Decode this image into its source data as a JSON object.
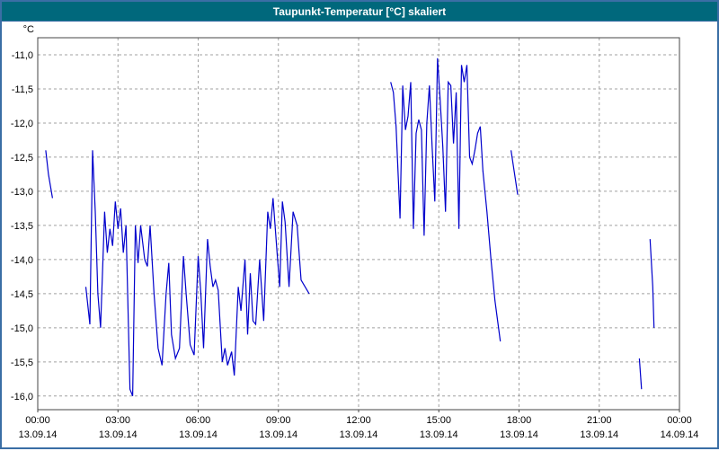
{
  "window": {
    "title": "Taupunkt-Temperatur [°C] skaliert"
  },
  "chart_data": {
    "type": "line",
    "title": "Taupunkt-Temperatur [°C] skaliert",
    "ylabel": "°C",
    "xlabel": "",
    "xlim": [
      0,
      24
    ],
    "ylim": [
      -16.2,
      -10.75
    ],
    "grid": true,
    "line_color": "#0000cc",
    "grid_color": "#a0a0a0",
    "border_color": "#444444",
    "y_ticks": [
      {
        "v": -11.0,
        "label": "-11,0"
      },
      {
        "v": -11.5,
        "label": "-11,5"
      },
      {
        "v": -12.0,
        "label": "-12,0"
      },
      {
        "v": -12.5,
        "label": "-12,5"
      },
      {
        "v": -13.0,
        "label": "-13,0"
      },
      {
        "v": -13.5,
        "label": "-13,5"
      },
      {
        "v": -14.0,
        "label": "-14,0"
      },
      {
        "v": -14.5,
        "label": "-14,5"
      },
      {
        "v": -15.0,
        "label": "-15,0"
      },
      {
        "v": -15.5,
        "label": "-15,5"
      },
      {
        "v": -16.0,
        "label": "-16,0"
      }
    ],
    "x_ticks": [
      {
        "t": 0,
        "time": "00:00",
        "date": "13.09.14"
      },
      {
        "t": 3,
        "time": "03:00",
        "date": "13.09.14"
      },
      {
        "t": 6,
        "time": "06:00",
        "date": "13.09.14"
      },
      {
        "t": 9,
        "time": "09:00",
        "date": "13.09.14"
      },
      {
        "t": 12,
        "time": "12:00",
        "date": "13.09.14"
      },
      {
        "t": 15,
        "time": "15:00",
        "date": "13.09.14"
      },
      {
        "t": 18,
        "time": "18:00",
        "date": "13.09.14"
      },
      {
        "t": 21,
        "time": "21:00",
        "date": "13.09.14"
      },
      {
        "t": 24,
        "time": "00:00",
        "date": "14.09.14"
      }
    ],
    "segments": [
      [
        [
          0.3,
          -12.4
        ],
        [
          0.4,
          -12.75
        ],
        [
          0.55,
          -13.1
        ]
      ],
      [
        [
          1.8,
          -14.4
        ],
        [
          1.95,
          -14.95
        ],
        [
          2.05,
          -12.4
        ],
        [
          2.15,
          -13.3
        ],
        [
          2.25,
          -14.5
        ],
        [
          2.35,
          -15.0
        ],
        [
          2.5,
          -13.3
        ],
        [
          2.6,
          -13.9
        ],
        [
          2.7,
          -13.55
        ],
        [
          2.8,
          -13.8
        ],
        [
          2.9,
          -13.15
        ],
        [
          3.0,
          -13.55
        ],
        [
          3.1,
          -13.25
        ],
        [
          3.2,
          -13.9
        ],
        [
          3.3,
          -13.5
        ],
        [
          3.45,
          -15.9
        ],
        [
          3.55,
          -16.0
        ],
        [
          3.65,
          -13.5
        ],
        [
          3.75,
          -14.05
        ],
        [
          3.85,
          -13.5
        ],
        [
          4.0,
          -14.0
        ],
        [
          4.1,
          -14.1
        ],
        [
          4.2,
          -13.5
        ],
        [
          4.35,
          -14.5
        ],
        [
          4.5,
          -15.3
        ],
        [
          4.65,
          -15.55
        ],
        [
          4.8,
          -14.5
        ],
        [
          4.9,
          -14.05
        ],
        [
          5.0,
          -15.1
        ],
        [
          5.15,
          -15.45
        ],
        [
          5.3,
          -15.3
        ],
        [
          5.45,
          -13.95
        ],
        [
          5.55,
          -14.5
        ],
        [
          5.7,
          -15.25
        ],
        [
          5.85,
          -15.4
        ],
        [
          6.0,
          -13.95
        ],
        [
          6.1,
          -14.5
        ],
        [
          6.2,
          -15.3
        ],
        [
          6.35,
          -13.7
        ],
        [
          6.45,
          -14.1
        ],
        [
          6.55,
          -14.4
        ],
        [
          6.65,
          -14.3
        ],
        [
          6.75,
          -14.45
        ],
        [
          6.9,
          -15.5
        ],
        [
          7.0,
          -15.3
        ],
        [
          7.1,
          -15.55
        ],
        [
          7.25,
          -15.35
        ],
        [
          7.35,
          -15.7
        ],
        [
          7.5,
          -14.4
        ],
        [
          7.6,
          -14.75
        ],
        [
          7.75,
          -14.0
        ],
        [
          7.85,
          -15.1
        ],
        [
          7.95,
          -14.2
        ],
        [
          8.05,
          -14.9
        ],
        [
          8.15,
          -14.95
        ],
        [
          8.3,
          -14.0
        ],
        [
          8.45,
          -14.9
        ],
        [
          8.6,
          -13.3
        ],
        [
          8.7,
          -13.55
        ],
        [
          8.8,
          -13.1
        ],
        [
          8.95,
          -13.9
        ],
        [
          9.05,
          -14.4
        ],
        [
          9.15,
          -13.15
        ],
        [
          9.25,
          -13.45
        ],
        [
          9.4,
          -14.4
        ],
        [
          9.55,
          -13.3
        ],
        [
          9.7,
          -13.5
        ],
        [
          9.85,
          -14.3
        ],
        [
          10.0,
          -14.4
        ],
        [
          10.15,
          -14.5
        ]
      ],
      [
        [
          13.2,
          -11.4
        ],
        [
          13.3,
          -11.55
        ],
        [
          13.4,
          -12.05
        ],
        [
          13.55,
          -13.4
        ],
        [
          13.65,
          -11.45
        ],
        [
          13.75,
          -12.1
        ],
        [
          13.85,
          -11.9
        ],
        [
          13.95,
          -11.4
        ],
        [
          14.05,
          -13.55
        ],
        [
          14.15,
          -12.15
        ],
        [
          14.25,
          -11.95
        ],
        [
          14.35,
          -12.1
        ],
        [
          14.45,
          -13.65
        ],
        [
          14.55,
          -12.0
        ],
        [
          14.65,
          -11.45
        ],
        [
          14.75,
          -12.35
        ],
        [
          14.85,
          -13.15
        ],
        [
          14.95,
          -11.05
        ],
        [
          15.05,
          -11.65
        ],
        [
          15.15,
          -12.35
        ],
        [
          15.25,
          -13.3
        ],
        [
          15.35,
          -11.4
        ],
        [
          15.45,
          -11.45
        ],
        [
          15.55,
          -12.3
        ],
        [
          15.65,
          -11.55
        ],
        [
          15.75,
          -13.55
        ],
        [
          15.85,
          -11.15
        ],
        [
          15.95,
          -11.4
        ],
        [
          16.05,
          -11.15
        ],
        [
          16.15,
          -12.5
        ],
        [
          16.25,
          -12.6
        ],
        [
          16.35,
          -12.4
        ],
        [
          16.45,
          -12.15
        ],
        [
          16.55,
          -12.05
        ],
        [
          16.65,
          -12.7
        ],
        [
          16.8,
          -13.3
        ],
        [
          16.95,
          -14.0
        ],
        [
          17.1,
          -14.6
        ],
        [
          17.3,
          -15.2
        ]
      ],
      [
        [
          17.7,
          -12.4
        ],
        [
          17.95,
          -13.05
        ]
      ],
      [
        [
          22.5,
          -15.45
        ],
        [
          22.58,
          -15.9
        ]
      ],
      [
        [
          22.9,
          -13.7
        ],
        [
          23.0,
          -14.4
        ],
        [
          23.05,
          -15.0
        ]
      ]
    ]
  }
}
